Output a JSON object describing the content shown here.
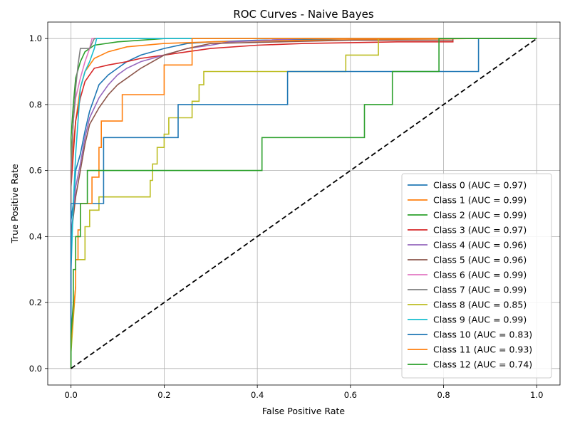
{
  "chart_data": {
    "type": "line",
    "title": "ROC Curves - Naive Bayes",
    "xlabel": "False Positive Rate",
    "ylabel": "True Positive Rate",
    "xlim": [
      -0.05,
      1.05
    ],
    "ylim": [
      -0.05,
      1.05
    ],
    "xticks": [
      "0.0",
      "0.2",
      "0.4",
      "0.6",
      "0.8",
      "1.0"
    ],
    "yticks": [
      "0.0",
      "0.2",
      "0.4",
      "0.6",
      "0.8",
      "1.0"
    ],
    "grid": true,
    "legend_position": "lower right",
    "diagonal": {
      "style": "dashed",
      "color": "#000000",
      "points": [
        [
          0,
          0
        ],
        [
          1,
          1
        ]
      ]
    },
    "series": [
      {
        "name": "Class 0 (AUC = 0.97)",
        "color": "#1f77b4",
        "points": [
          [
            0,
            0
          ],
          [
            0,
            0.45
          ],
          [
            0.005,
            0.5
          ],
          [
            0.01,
            0.6
          ],
          [
            0.02,
            0.65
          ],
          [
            0.03,
            0.72
          ],
          [
            0.04,
            0.78
          ],
          [
            0.05,
            0.82
          ],
          [
            0.06,
            0.86
          ],
          [
            0.08,
            0.89
          ],
          [
            0.1,
            0.91
          ],
          [
            0.12,
            0.93
          ],
          [
            0.15,
            0.95
          ],
          [
            0.2,
            0.97
          ],
          [
            0.25,
            0.985
          ],
          [
            0.3,
            0.99
          ],
          [
            0.4,
            0.995
          ],
          [
            0.6,
            1
          ],
          [
            1,
            1
          ]
        ]
      },
      {
        "name": "Class 1 (AUC = 0.99)",
        "color": "#ff7f0e",
        "points": [
          [
            0,
            0
          ],
          [
            0,
            0.6
          ],
          [
            0.01,
            0.75
          ],
          [
            0.02,
            0.85
          ],
          [
            0.03,
            0.9
          ],
          [
            0.05,
            0.94
          ],
          [
            0.08,
            0.96
          ],
          [
            0.12,
            0.975
          ],
          [
            0.2,
            0.985
          ],
          [
            0.3,
            0.99
          ],
          [
            0.5,
            0.995
          ],
          [
            0.85,
            1
          ],
          [
            1,
            1
          ]
        ]
      },
      {
        "name": "Class 2 (AUC = 0.99)",
        "color": "#2ca02c",
        "points": [
          [
            0,
            0
          ],
          [
            0,
            0.7
          ],
          [
            0.005,
            0.8
          ],
          [
            0.01,
            0.88
          ],
          [
            0.02,
            0.93
          ],
          [
            0.03,
            0.96
          ],
          [
            0.05,
            0.98
          ],
          [
            0.1,
            0.99
          ],
          [
            0.2,
            1
          ],
          [
            1,
            1
          ]
        ]
      },
      {
        "name": "Class 3 (AUC = 0.97)",
        "color": "#d62728",
        "points": [
          [
            0,
            0
          ],
          [
            0,
            0.55
          ],
          [
            0.005,
            0.65
          ],
          [
            0.01,
            0.75
          ],
          [
            0.02,
            0.82
          ],
          [
            0.03,
            0.87
          ],
          [
            0.04,
            0.89
          ],
          [
            0.05,
            0.91
          ],
          [
            0.08,
            0.92
          ],
          [
            0.12,
            0.93
          ],
          [
            0.15,
            0.94
          ],
          [
            0.2,
            0.95
          ],
          [
            0.25,
            0.96
          ],
          [
            0.3,
            0.97
          ],
          [
            0.4,
            0.98
          ],
          [
            0.5,
            0.985
          ],
          [
            0.7,
            0.99
          ],
          [
            0.82,
            0.99
          ],
          [
            0.82,
            1
          ],
          [
            1,
            1
          ]
        ]
      },
      {
        "name": "Class 4 (AUC = 0.96)",
        "color": "#9467bd",
        "points": [
          [
            0,
            0
          ],
          [
            0,
            0.4
          ],
          [
            0.01,
            0.55
          ],
          [
            0.02,
            0.62
          ],
          [
            0.03,
            0.7
          ],
          [
            0.04,
            0.76
          ],
          [
            0.06,
            0.82
          ],
          [
            0.08,
            0.86
          ],
          [
            0.1,
            0.89
          ],
          [
            0.12,
            0.91
          ],
          [
            0.15,
            0.93
          ],
          [
            0.2,
            0.95
          ],
          [
            0.25,
            0.97
          ],
          [
            0.3,
            0.98
          ],
          [
            0.34,
            0.99
          ],
          [
            0.5,
            1
          ],
          [
            1,
            1
          ]
        ]
      },
      {
        "name": "Class 5 (AUC = 0.96)",
        "color": "#8c564b",
        "points": [
          [
            0,
            0
          ],
          [
            0,
            0.4
          ],
          [
            0.01,
            0.52
          ],
          [
            0.02,
            0.6
          ],
          [
            0.03,
            0.68
          ],
          [
            0.04,
            0.74
          ],
          [
            0.06,
            0.79
          ],
          [
            0.08,
            0.83
          ],
          [
            0.1,
            0.86
          ],
          [
            0.12,
            0.88
          ],
          [
            0.15,
            0.91
          ],
          [
            0.2,
            0.95
          ],
          [
            0.25,
            0.97
          ],
          [
            0.3,
            0.985
          ],
          [
            0.45,
            0.99
          ],
          [
            0.6,
            0.995
          ],
          [
            0.82,
            0.995
          ],
          [
            0.82,
            1
          ],
          [
            1,
            1
          ]
        ]
      },
      {
        "name": "Class 6 (AUC = 0.99)",
        "color": "#e377c2",
        "points": [
          [
            0,
            0
          ],
          [
            0,
            0.62
          ],
          [
            0.005,
            0.75
          ],
          [
            0.01,
            0.82
          ],
          [
            0.02,
            0.88
          ],
          [
            0.03,
            0.93
          ],
          [
            0.04,
            0.97
          ],
          [
            0.045,
            1
          ],
          [
            1,
            1
          ]
        ]
      },
      {
        "name": "Class 7 (AUC = 0.99)",
        "color": "#7f7f7f",
        "points": [
          [
            0,
            0
          ],
          [
            0,
            0.6
          ],
          [
            0.005,
            0.75
          ],
          [
            0.01,
            0.85
          ],
          [
            0.015,
            0.92
          ],
          [
            0.02,
            0.97
          ],
          [
            0.04,
            0.97
          ],
          [
            0.05,
            1
          ],
          [
            1,
            1
          ]
        ]
      },
      {
        "name": "Class 8 (AUC = 0.85)",
        "color": "#bcbd22",
        "points": [
          [
            0,
            0
          ],
          [
            0,
            0.05
          ],
          [
            0.005,
            0.15
          ],
          [
            0.01,
            0.25
          ],
          [
            0.01,
            0.33
          ],
          [
            0.03,
            0.33
          ],
          [
            0.03,
            0.43
          ],
          [
            0.04,
            0.43
          ],
          [
            0.04,
            0.48
          ],
          [
            0.06,
            0.48
          ],
          [
            0.06,
            0.52
          ],
          [
            0.17,
            0.52
          ],
          [
            0.17,
            0.57
          ],
          [
            0.175,
            0.57
          ],
          [
            0.175,
            0.62
          ],
          [
            0.185,
            0.62
          ],
          [
            0.185,
            0.67
          ],
          [
            0.2,
            0.67
          ],
          [
            0.2,
            0.71
          ],
          [
            0.21,
            0.71
          ],
          [
            0.21,
            0.76
          ],
          [
            0.26,
            0.76
          ],
          [
            0.26,
            0.81
          ],
          [
            0.275,
            0.81
          ],
          [
            0.275,
            0.86
          ],
          [
            0.285,
            0.86
          ],
          [
            0.285,
            0.9
          ],
          [
            0.59,
            0.9
          ],
          [
            0.59,
            0.95
          ],
          [
            0.66,
            0.95
          ],
          [
            0.66,
            1
          ],
          [
            1,
            1
          ]
        ]
      },
      {
        "name": "Class 9 (AUC = 0.99)",
        "color": "#17becf",
        "points": [
          [
            0,
            0
          ],
          [
            0,
            0.3
          ],
          [
            0.005,
            0.5
          ],
          [
            0.01,
            0.65
          ],
          [
            0.015,
            0.75
          ],
          [
            0.02,
            0.85
          ],
          [
            0.03,
            0.9
          ],
          [
            0.04,
            0.93
          ],
          [
            0.045,
            0.95
          ],
          [
            0.05,
            0.97
          ],
          [
            0.055,
            1
          ],
          [
            1,
            1
          ]
        ]
      },
      {
        "name": "Class 10 (AUC = 0.83)",
        "color": "#1f77b4",
        "points": [
          [
            0,
            0
          ],
          [
            0,
            0.5
          ],
          [
            0.07,
            0.5
          ],
          [
            0.07,
            0.6
          ],
          [
            0.07,
            0.7
          ],
          [
            0.23,
            0.7
          ],
          [
            0.23,
            0.8
          ],
          [
            0.465,
            0.8
          ],
          [
            0.465,
            0.9
          ],
          [
            0.875,
            0.9
          ],
          [
            0.875,
            1
          ],
          [
            1,
            1
          ]
        ]
      },
      {
        "name": "Class 11 (AUC = 0.93)",
        "color": "#ff7f0e",
        "points": [
          [
            0,
            0
          ],
          [
            0,
            0.08
          ],
          [
            0.005,
            0.17
          ],
          [
            0.01,
            0.25
          ],
          [
            0.01,
            0.33
          ],
          [
            0.015,
            0.33
          ],
          [
            0.015,
            0.42
          ],
          [
            0.02,
            0.42
          ],
          [
            0.02,
            0.5
          ],
          [
            0.045,
            0.5
          ],
          [
            0.045,
            0.58
          ],
          [
            0.06,
            0.58
          ],
          [
            0.06,
            0.67
          ],
          [
            0.065,
            0.67
          ],
          [
            0.065,
            0.75
          ],
          [
            0.11,
            0.75
          ],
          [
            0.11,
            0.83
          ],
          [
            0.2,
            0.83
          ],
          [
            0.2,
            0.92
          ],
          [
            0.26,
            0.92
          ],
          [
            0.26,
            1
          ],
          [
            1,
            1
          ]
        ]
      },
      {
        "name": "Class 12 (AUC = 0.74)",
        "color": "#2ca02c",
        "points": [
          [
            0,
            0
          ],
          [
            0,
            0.1
          ],
          [
            0.005,
            0.2
          ],
          [
            0.005,
            0.3
          ],
          [
            0.01,
            0.3
          ],
          [
            0.01,
            0.4
          ],
          [
            0.02,
            0.4
          ],
          [
            0.02,
            0.5
          ],
          [
            0.035,
            0.5
          ],
          [
            0.035,
            0.6
          ],
          [
            0.41,
            0.6
          ],
          [
            0.41,
            0.7
          ],
          [
            0.63,
            0.7
          ],
          [
            0.63,
            0.8
          ],
          [
            0.69,
            0.8
          ],
          [
            0.69,
            0.9
          ],
          [
            0.79,
            0.9
          ],
          [
            0.79,
            1
          ],
          [
            1,
            1
          ]
        ]
      }
    ]
  }
}
